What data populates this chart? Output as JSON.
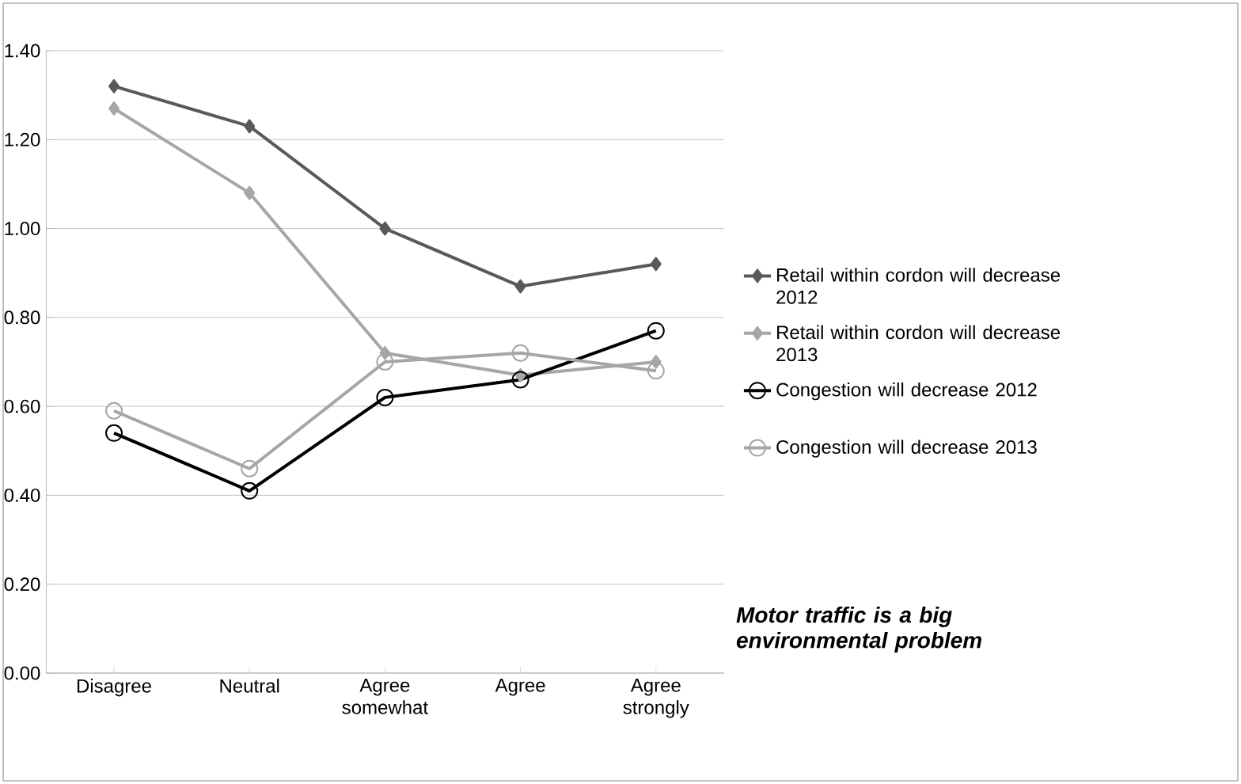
{
  "chart_data": {
    "type": "line",
    "categories": [
      "Disagree",
      "Neutral",
      "Agree somewhat",
      "Agree",
      "Agree strongly"
    ],
    "series": [
      {
        "name": "Retail within cordon will decrease 2012",
        "color": "#595959",
        "marker": "diamond",
        "values": [
          1.32,
          1.23,
          1.0,
          0.87,
          0.92
        ]
      },
      {
        "name": "Retail within cordon will decrease 2013",
        "color": "#a6a6a6",
        "marker": "diamond",
        "values": [
          1.27,
          1.08,
          0.72,
          0.67,
          0.7
        ]
      },
      {
        "name": "Congestion will decrease 2012",
        "color": "#000000",
        "marker": "circle",
        "values": [
          0.54,
          0.41,
          0.62,
          0.66,
          0.77
        ]
      },
      {
        "name": "Congestion will decrease 2013",
        "color": "#a6a6a6",
        "marker": "circle",
        "values": [
          0.59,
          0.46,
          0.7,
          0.72,
          0.68
        ]
      }
    ],
    "ylim": [
      0,
      1.4
    ],
    "yticks": [
      {
        "value": 0,
        "label": "0.00"
      },
      {
        "value": 0.2,
        "label": "0.20"
      },
      {
        "value": 0.4,
        "label": "0.40"
      },
      {
        "value": 0.6,
        "label": "0.60"
      },
      {
        "value": 0.8,
        "label": "0.80"
      },
      {
        "value": 1.0,
        "label": "1.00"
      },
      {
        "value": 1.2,
        "label": "1.20"
      },
      {
        "value": 1.4,
        "label": "1.40"
      }
    ],
    "grid": "y",
    "legend": "right",
    "line_style": "solid",
    "annotations": [
      "Motor traffic is a big environmental problem"
    ]
  }
}
